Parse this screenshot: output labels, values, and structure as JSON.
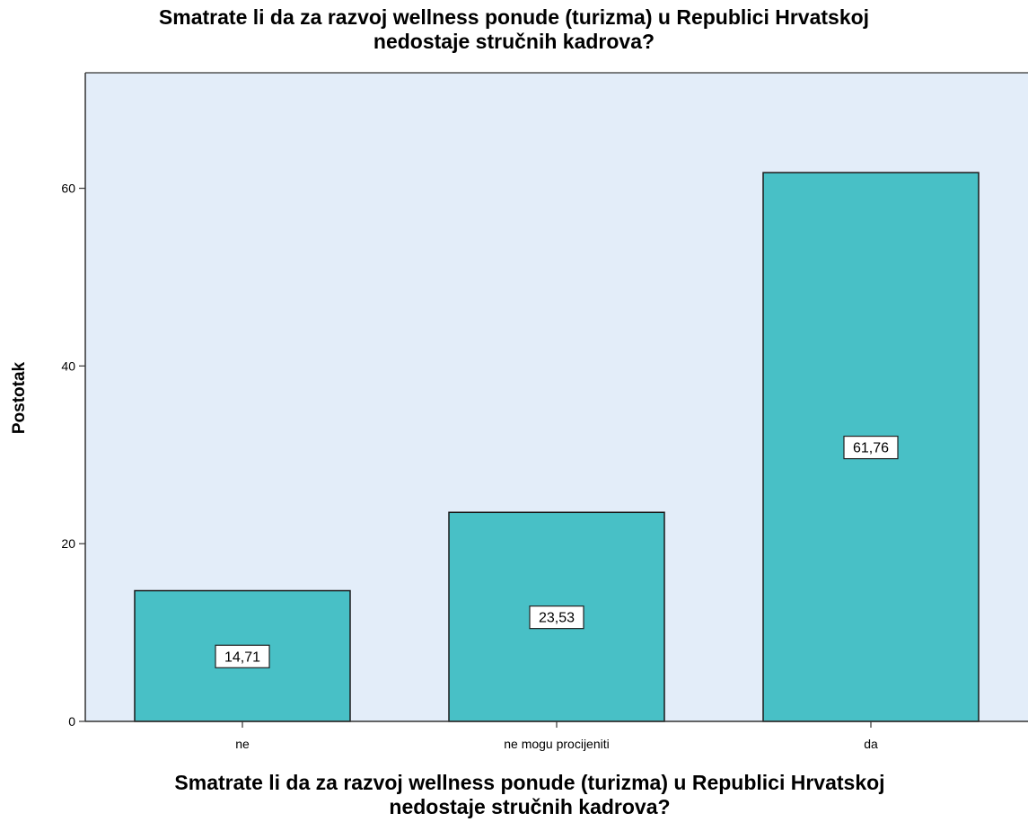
{
  "chart_data": {
    "type": "bar",
    "title_lines": [
      "Smatrate li da za razvoj wellness ponude (turizma) u Republici Hrvatskoj",
      "nedostaje stručnih kadrova?"
    ],
    "xlabel_lines": [
      "Smatrate li da za razvoj wellness ponude (turizma) u Republici Hrvatskoj",
      "nedostaje stručnih kadrova?"
    ],
    "ylabel": "Postotak",
    "categories": [
      "ne",
      "ne mogu procijeniti",
      "da"
    ],
    "values": [
      14.71,
      23.53,
      61.76
    ],
    "data_labels": [
      "14,71",
      "23,53",
      "61,76"
    ],
    "ylim": [
      0,
      73
    ],
    "yticks": [
      0,
      20,
      40,
      60
    ],
    "ytick_labels": [
      "0",
      "20",
      "40",
      "60"
    ],
    "grid": false,
    "colors": {
      "bar": "#48C0C6",
      "plot_background": "#E3EDF9",
      "bar_stroke": "#1a1a1a"
    }
  }
}
